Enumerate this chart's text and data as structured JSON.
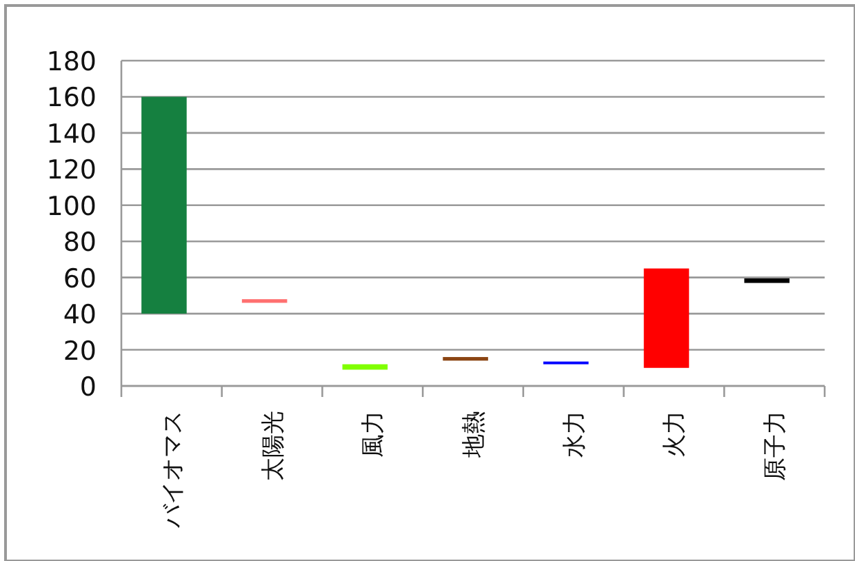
{
  "chart_data": {
    "type": "bar",
    "categories": [
      "バイオマス",
      "太陽光",
      "風力",
      "地熱",
      "水力",
      "火力",
      "原子力"
    ],
    "base": [
      40,
      46,
      9,
      14,
      12,
      10,
      57
    ],
    "values": [
      120,
      2,
      3,
      2,
      1.5,
      55,
      2.5
    ],
    "colors": [
      "#158040",
      "#ff7070",
      "#80ff00",
      "#8b4513",
      "#0000ff",
      "#ff0000",
      "#000000"
    ],
    "ylim": [
      0,
      180
    ],
    "yticks": [
      0,
      20,
      40,
      60,
      80,
      100,
      120,
      140,
      160,
      180
    ],
    "grid": "y"
  }
}
